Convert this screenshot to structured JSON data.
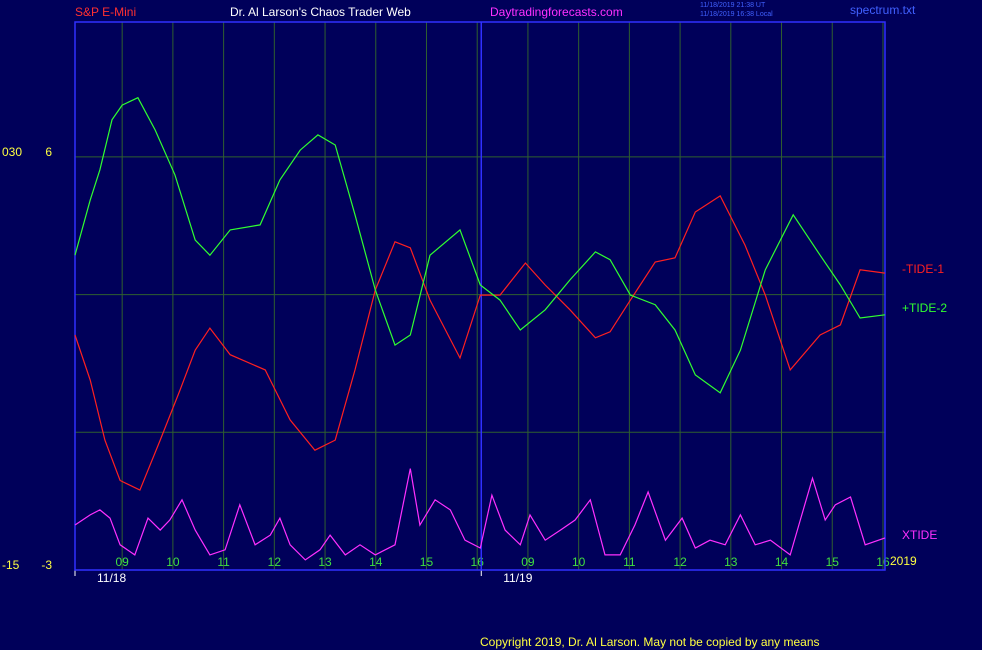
{
  "header": {
    "left": "S&P E-Mini",
    "center": "Dr. Al Larson's Chaos Trader Web",
    "site": "Daytradingforecasts.com",
    "time_ut": "11/18/2019 21:38 UT",
    "time_local": "11/18/2019 16:38 Local",
    "file": "spectrum.txt"
  },
  "footer": {
    "copyright": "Copyright 2019, Dr. Al Larson. May not be copied by any means",
    "year": "2019"
  },
  "chart_data": {
    "type": "line",
    "xlim": [
      0.07,
      16.04
    ],
    "ylim": [
      -3,
      8.94
    ],
    "xticks": [
      {
        "value": 1,
        "label": "09"
      },
      {
        "value": 2,
        "label": "10"
      },
      {
        "value": 3,
        "label": "11"
      },
      {
        "value": 4,
        "label": "12"
      },
      {
        "value": 5,
        "label": "13"
      },
      {
        "value": 6,
        "label": "14"
      },
      {
        "value": 7,
        "label": "15"
      },
      {
        "value": 8,
        "label": "16"
      },
      {
        "value": 9,
        "label": "09"
      },
      {
        "value": 10,
        "label": "10"
      },
      {
        "value": 11,
        "label": "11"
      },
      {
        "value": 12,
        "label": "12"
      },
      {
        "value": 13,
        "label": "13"
      },
      {
        "value": 14,
        "label": "14"
      },
      {
        "value": 15,
        "label": "15"
      },
      {
        "value": 16,
        "label": "16"
      }
    ],
    "yticks": [
      6,
      -3
    ],
    "ygrid": [
      -3,
      0,
      3,
      6
    ],
    "yticks2": [
      {
        "value": 6,
        "label": "030"
      },
      {
        "value": -3,
        "label": "-15"
      }
    ],
    "dates": [
      {
        "value": 0.07,
        "label": "11/18"
      },
      {
        "value": 8.08,
        "label": "11/19"
      }
    ],
    "grid": true,
    "series": [
      {
        "name": "-TIDE-1",
        "color": "#ff2020",
        "x": [
          0.07,
          0.37,
          0.66,
          0.96,
          1.35,
          1.75,
          2.14,
          2.44,
          2.73,
          3.13,
          3.82,
          4.31,
          4.8,
          5.2,
          5.59,
          5.99,
          6.38,
          6.68,
          7.07,
          7.66,
          8.06,
          8.45,
          8.95,
          9.34,
          9.83,
          10.33,
          10.62,
          11.02,
          11.51,
          11.9,
          12.3,
          12.79,
          13.28,
          13.68,
          14.17,
          14.76,
          15.16,
          15.55,
          16.04
        ],
        "values": [
          2.12,
          1.14,
          -0.17,
          -1.05,
          -1.26,
          -0.17,
          0.92,
          1.79,
          2.27,
          1.69,
          1.36,
          0.27,
          -0.39,
          -0.17,
          1.36,
          3.1,
          4.15,
          4.02,
          2.88,
          1.62,
          2.99,
          2.99,
          3.69,
          3.21,
          2.67,
          2.06,
          2.19,
          2.88,
          3.71,
          3.8,
          4.8,
          5.15,
          4.08,
          2.99,
          1.36,
          2.12,
          2.34,
          3.54,
          3.47
        ]
      },
      {
        "name": "+TIDE-2",
        "color": "#30ff30",
        "x": [
          0.07,
          0.37,
          0.56,
          0.8,
          1.0,
          1.31,
          1.65,
          2.04,
          2.44,
          2.73,
          3.13,
          3.72,
          4.11,
          4.51,
          4.86,
          5.2,
          5.59,
          5.99,
          6.38,
          6.68,
          7.07,
          7.66,
          8.06,
          8.45,
          8.85,
          9.34,
          9.83,
          10.33,
          10.62,
          11.02,
          11.51,
          11.9,
          12.3,
          12.79,
          13.19,
          13.68,
          14.23,
          14.76,
          15.16,
          15.55,
          16.04
        ],
        "values": [
          3.86,
          5.06,
          5.72,
          6.81,
          7.13,
          7.29,
          6.59,
          5.61,
          4.19,
          3.86,
          4.41,
          4.52,
          5.5,
          6.15,
          6.48,
          6.26,
          4.74,
          3.1,
          1.9,
          2.12,
          3.86,
          4.41,
          3.21,
          2.88,
          2.23,
          2.67,
          3.32,
          3.93,
          3.76,
          2.99,
          2.78,
          2.23,
          1.25,
          0.86,
          1.79,
          3.54,
          4.74,
          3.86,
          3.21,
          2.49,
          2.56
        ]
      },
      {
        "name": "XTIDE",
        "color": "#ff30ff",
        "x": [
          0.07,
          0.37,
          0.56,
          0.76,
          0.96,
          1.25,
          1.51,
          1.75,
          1.94,
          2.18,
          2.44,
          2.73,
          3.03,
          3.32,
          3.62,
          3.92,
          4.11,
          4.31,
          4.61,
          4.9,
          5.1,
          5.4,
          5.69,
          5.99,
          6.38,
          6.68,
          6.87,
          7.17,
          7.47,
          7.76,
          8.06,
          8.29,
          8.55,
          8.85,
          9.04,
          9.34,
          9.64,
          9.93,
          10.23,
          10.52,
          10.82,
          11.11,
          11.37,
          11.71,
          12.04,
          12.3,
          12.59,
          12.89,
          13.19,
          13.48,
          13.78,
          14.17,
          14.37,
          14.61,
          14.86,
          15.06,
          15.36,
          15.65,
          16.04
        ],
        "values": [
          -2.02,
          -1.8,
          -1.69,
          -1.87,
          -2.45,
          -2.67,
          -1.87,
          -2.13,
          -1.91,
          -1.47,
          -2.13,
          -2.67,
          -2.56,
          -1.58,
          -2.45,
          -2.24,
          -1.87,
          -2.45,
          -2.78,
          -2.56,
          -2.24,
          -2.67,
          -2.45,
          -2.67,
          -2.45,
          -0.79,
          -2.02,
          -1.47,
          -1.69,
          -2.35,
          -2.52,
          -1.37,
          -2.13,
          -2.45,
          -1.8,
          -2.35,
          -2.13,
          -1.91,
          -1.47,
          -2.67,
          -2.67,
          -2.02,
          -1.3,
          -2.35,
          -1.87,
          -2.52,
          -2.35,
          -2.45,
          -1.8,
          -2.45,
          -2.35,
          -2.67,
          -1.91,
          -1.0,
          -1.91,
          -1.58,
          -1.41,
          -2.45,
          -2.3
        ]
      }
    ]
  }
}
